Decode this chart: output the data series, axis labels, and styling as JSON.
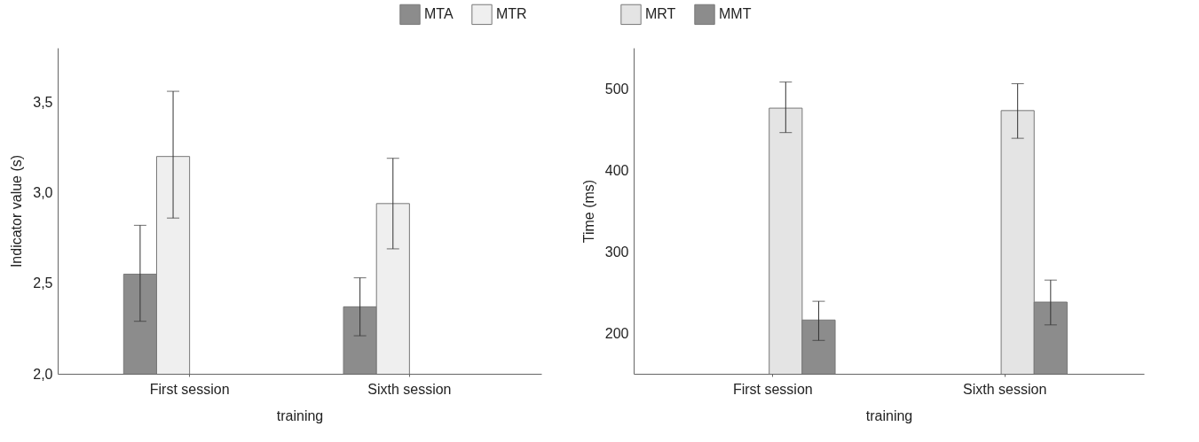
{
  "chart_data": [
    {
      "type": "bar",
      "xlabel": "training",
      "ylabel": "Indicator value (s)",
      "categories": [
        "First session",
        "Sixth session"
      ],
      "legend": "top",
      "ylim": [
        2,
        3.8
      ],
      "yticks": [
        {
          "value": 2,
          "label": "2,0"
        },
        {
          "value": 2.5,
          "label": "2,5"
        },
        {
          "value": 3,
          "label": "3,0"
        },
        {
          "value": 3.5,
          "label": "3,5"
        }
      ],
      "series": [
        {
          "name": "MTA",
          "color": "#8c8c8c",
          "values": [
            2.55,
            2.37
          ],
          "errors": [
            [
              2.29,
              2.82
            ],
            [
              2.21,
              2.53
            ]
          ]
        },
        {
          "name": "MTR",
          "color": "#efefef",
          "values": [
            3.2,
            2.94
          ],
          "errors": [
            [
              2.86,
              3.56
            ],
            [
              2.69,
              3.19
            ]
          ]
        }
      ]
    },
    {
      "type": "bar",
      "xlabel": "training",
      "ylabel": "Time (ms)",
      "categories": [
        "First session",
        "Sixth session"
      ],
      "legend": "top",
      "ylim": [
        150,
        550
      ],
      "yticks": [
        200,
        300,
        400,
        500
      ],
      "series": [
        {
          "name": "MRT",
          "color": "#e4e4e4",
          "values": [
            476,
            473
          ],
          "errors": [
            [
              446,
              508
            ],
            [
              439,
              506
            ]
          ]
        },
        {
          "name": "MMT",
          "color": "#8c8c8c",
          "values": [
            216,
            238
          ],
          "errors": [
            [
              191,
              239
            ],
            [
              210,
              265
            ]
          ]
        }
      ]
    }
  ]
}
